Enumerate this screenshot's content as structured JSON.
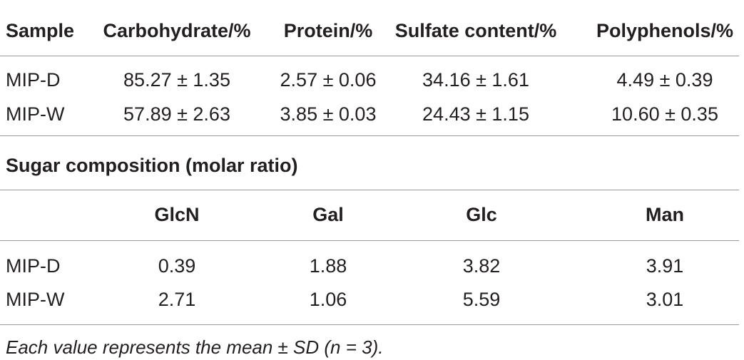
{
  "table1": {
    "header": [
      "Sample",
      "Carbohydrate/%",
      "Protein/%",
      "Sulfate content/%",
      "Polyphenols/%"
    ],
    "rows": [
      [
        "MIP-D",
        "85.27 ± 1.35",
        "2.57 ± 0.06",
        "34.16 ± 1.61",
        "4.49 ± 0.39"
      ],
      [
        "MIP-W",
        "57.89 ± 2.63",
        "3.85 ± 0.03",
        "24.43 ± 1.15",
        "10.60 ± 0.35"
      ]
    ]
  },
  "table2": {
    "title": "Sugar composition (molar ratio)",
    "header": [
      "GlcN",
      "Gal",
      "Glc",
      "Man"
    ],
    "rows": [
      [
        "MIP-D",
        "0.39",
        "1.88",
        "3.82",
        "3.91"
      ],
      [
        "MIP-W",
        "2.71",
        "1.06",
        "5.59",
        "3.01"
      ]
    ]
  },
  "footnote": "Each value represents the mean ± SD (n = 3)."
}
